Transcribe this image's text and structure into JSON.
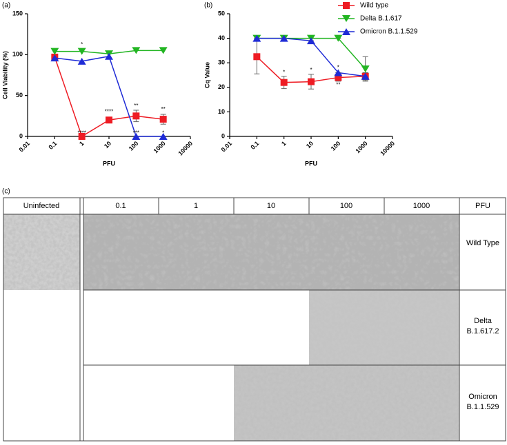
{
  "chart_data": [
    {
      "type": "line",
      "panel_label": "(a)",
      "y_label": "Cell Viability (%)",
      "x_label": "PFU",
      "x": [
        0.1,
        1,
        10,
        100,
        1000
      ],
      "log_x": true,
      "xlim": [
        0.01,
        10000
      ],
      "xticks": [
        0.01,
        0.1,
        1,
        10,
        100,
        1000,
        10000
      ],
      "ylim": [
        0,
        150
      ],
      "yticks": [
        0,
        50,
        100,
        150
      ],
      "series": [
        {
          "color": "#ee1c24",
          "marker": "square",
          "values": [
            97,
            0,
            20,
            25,
            21
          ],
          "errors": [
            3,
            0,
            3,
            7,
            6
          ]
        },
        {
          "color": "#22b522",
          "marker": "triangle-down",
          "values": [
            104,
            104,
            101,
            105,
            105
          ]
        },
        {
          "color": "#1f2bd6",
          "marker": "triangle-up",
          "values": [
            96,
            92,
            98,
            0,
            0
          ]
        }
      ],
      "annotations": [
        {
          "text": "*",
          "x": 1,
          "y": 112
        },
        {
          "text": "****",
          "x": 1,
          "y": 4
        },
        {
          "text": "****",
          "x": 10,
          "y": 30
        },
        {
          "text": "**",
          "x": 100,
          "y": 37
        },
        {
          "text": "***",
          "x": 100,
          "y": 4
        },
        {
          "text": "**",
          "x": 1000,
          "y": 33
        },
        {
          "text": "*",
          "x": 1000,
          "y": 4
        }
      ]
    },
    {
      "type": "line",
      "panel_label": "(b)",
      "y_label": "Cq Value",
      "x_label": "PFU",
      "x": [
        0.1,
        1,
        10,
        100,
        1000
      ],
      "log_x": true,
      "xlim": [
        0.01,
        10000
      ],
      "xticks": [
        0.01,
        0.1,
        1,
        10,
        100,
        1000,
        10000
      ],
      "ylim": [
        0,
        50
      ],
      "yticks": [
        0,
        10,
        20,
        30,
        40,
        50
      ],
      "legend": "top-right",
      "series": [
        {
          "name": "Wild type",
          "color": "#ee1c24",
          "marker": "square",
          "values": [
            32.5,
            22,
            22.3,
            24,
            24.5
          ],
          "errors": [
            7,
            2.5,
            3,
            1.5,
            1.5
          ]
        },
        {
          "name": "Delta B.1.617",
          "color": "#22b522",
          "marker": "triangle-down",
          "values": [
            40,
            40,
            40,
            40,
            27.5
          ],
          "errors": [
            0,
            0,
            0,
            0,
            5
          ]
        },
        {
          "name": "Omicron B.1.1.529",
          "color": "#1f2bd6",
          "marker": "triangle-up",
          "values": [
            40,
            40,
            39,
            26,
            24.5
          ],
          "errors": [
            0,
            0,
            0,
            0,
            1.5
          ]
        }
      ],
      "annotations": [
        {
          "text": "*",
          "x": 1,
          "y": 26
        },
        {
          "text": "*",
          "x": 10,
          "y": 27
        },
        {
          "text": "*",
          "x": 100,
          "y": 28
        },
        {
          "text": "**",
          "x": 100,
          "y": 21
        }
      ]
    }
  ],
  "panel_c": {
    "label": "(c)",
    "header": [
      "Uninfected",
      "0.1",
      "1",
      "10",
      "100",
      "1000",
      "PFU"
    ],
    "rows": [
      [
        "Wild Type"
      ],
      [
        "Delta",
        "B.1.617.2"
      ],
      [
        "Omicron",
        "B.1.1.529"
      ]
    ]
  }
}
